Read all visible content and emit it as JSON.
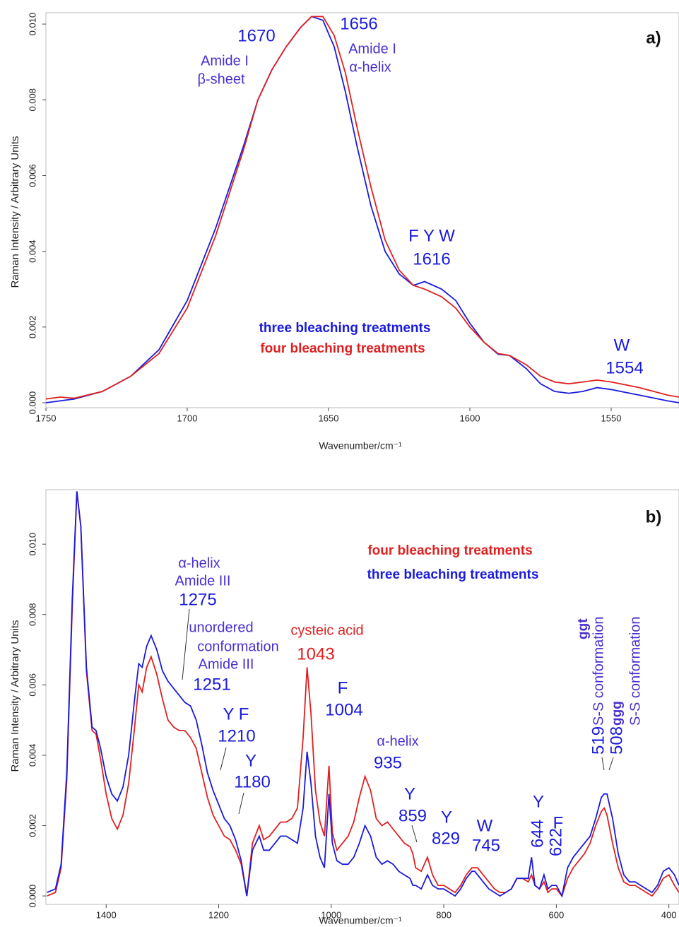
{
  "chart_data": [
    {
      "type": "line",
      "panel_label": "a)",
      "xlabel": "Wavenumber/cm⁻¹",
      "ylabel": "Raman Intensity / Arbitrary Units",
      "xlim": [
        1750,
        1526
      ],
      "xticks": [
        1750,
        1700,
        1650,
        1600,
        1550
      ],
      "ylim": [
        -0.00013,
        0.0103
      ],
      "yticks": [
        {
          "value": 0,
          "label": "0.000"
        },
        {
          "value": 0.002,
          "label": "0.002"
        },
        {
          "value": 0.004,
          "label": "0.004"
        },
        {
          "value": 0.006,
          "label": "0.006"
        },
        {
          "value": 0.008,
          "label": "0.008"
        },
        {
          "value": 0.01,
          "label": "0.010"
        }
      ],
      "x": [
        1750,
        1745,
        1740,
        1730,
        1720,
        1710,
        1700,
        1690,
        1680,
        1675,
        1670,
        1665,
        1660,
        1656,
        1652,
        1648,
        1644,
        1640,
        1635,
        1630,
        1625,
        1620,
        1616,
        1610,
        1605,
        1600,
        1595,
        1590,
        1586,
        1580,
        1575,
        1570,
        1565,
        1560,
        1555,
        1550,
        1540,
        1530,
        1526
      ],
      "series": [
        {
          "name": "three bleaching treatments",
          "color": "#1a1adc",
          "values": [
            0.0,
            5e-05,
            0.0001,
            0.0003,
            0.0007,
            0.0014,
            0.0027,
            0.0046,
            0.0068,
            0.008,
            0.0088,
            0.0094,
            0.0099,
            0.0102,
            0.0101,
            0.0094,
            0.0082,
            0.0068,
            0.0052,
            0.004,
            0.0034,
            0.0031,
            0.0032,
            0.003,
            0.0027,
            0.0021,
            0.0016,
            0.00128,
            0.00125,
            0.0009,
            0.0005,
            0.0003,
            0.00025,
            0.0003,
            0.0004,
            0.00035,
            0.0002,
            5e-05,
            0.0
          ]
        },
        {
          "name": "four bleaching treatments",
          "color": "#e02020",
          "values": [
            0.0001,
            0.00015,
            0.00012,
            0.0003,
            0.0007,
            0.0013,
            0.0025,
            0.0044,
            0.0067,
            0.008,
            0.0088,
            0.0094,
            0.0099,
            0.0102,
            0.0102,
            0.0097,
            0.0087,
            0.0073,
            0.0057,
            0.0043,
            0.0035,
            0.0031,
            0.003,
            0.0028,
            0.0025,
            0.002,
            0.0016,
            0.0013,
            0.00125,
            0.001,
            0.0007,
            0.00055,
            0.0005,
            0.00055,
            0.0006,
            0.00055,
            0.0004,
            0.0002,
            0.00015
          ]
        }
      ],
      "annotations": [
        "1670",
        "Amide I",
        "β-sheet",
        "1656",
        "Amide I",
        "α-helix",
        "F Y W",
        "1616",
        "W",
        "1554"
      ]
    },
    {
      "type": "line",
      "panel_label": "b)",
      "xlabel": "Wavenumber/cm⁻¹",
      "ylabel": "Raman Intensity / Arbitrary Units",
      "xlim": [
        1507,
        382
      ],
      "xticks": [
        1400,
        1200,
        1000,
        800,
        600,
        400
      ],
      "ylim": [
        -0.00024,
        0.01155
      ],
      "yticks": [
        {
          "value": 0,
          "label": "0.000"
        },
        {
          "value": 0.002,
          "label": "0.002"
        },
        {
          "value": 0.004,
          "label": "0.004"
        },
        {
          "value": 0.006,
          "label": "0.006"
        },
        {
          "value": 0.008,
          "label": "0.008"
        },
        {
          "value": 0.01,
          "label": "0.010"
        }
      ],
      "x": [
        1505,
        1490,
        1480,
        1470,
        1460,
        1452,
        1445,
        1435,
        1425,
        1418,
        1410,
        1400,
        1390,
        1380,
        1370,
        1360,
        1350,
        1342,
        1336,
        1328,
        1320,
        1310,
        1300,
        1290,
        1280,
        1270,
        1260,
        1250,
        1240,
        1230,
        1220,
        1210,
        1200,
        1190,
        1180,
        1170,
        1160,
        1150,
        1140,
        1128,
        1120,
        1110,
        1100,
        1090,
        1080,
        1070,
        1060,
        1050,
        1043,
        1036,
        1028,
        1020,
        1012,
        1004,
        998,
        990,
        980,
        970,
        960,
        950,
        940,
        930,
        920,
        910,
        900,
        890,
        880,
        870,
        860,
        855,
        850,
        840,
        829,
        820,
        810,
        800,
        790,
        780,
        770,
        760,
        750,
        745,
        740,
        730,
        720,
        710,
        700,
        690,
        680,
        670,
        660,
        650,
        644,
        638,
        630,
        622,
        615,
        608,
        600,
        590,
        580,
        570,
        560,
        550,
        540,
        530,
        520,
        515,
        510,
        500,
        490,
        480,
        470,
        460,
        450,
        440,
        430,
        420,
        410,
        400,
        390,
        382
      ],
      "series": [
        {
          "name": "four bleaching treatments",
          "color": "#e02020",
          "values": [
            0.0,
            0.0001,
            0.0008,
            0.0033,
            0.0083,
            0.0115,
            0.0105,
            0.0064,
            0.0047,
            0.0046,
            0.0039,
            0.0029,
            0.0022,
            0.0019,
            0.0023,
            0.0032,
            0.0047,
            0.006,
            0.0058,
            0.0065,
            0.0068,
            0.0063,
            0.0056,
            0.005,
            0.0048,
            0.0047,
            0.0047,
            0.0045,
            0.0042,
            0.0035,
            0.0028,
            0.0023,
            0.002,
            0.0017,
            0.0016,
            0.0013,
            0.0009,
            0.0,
            0.0015,
            0.002,
            0.0016,
            0.0017,
            0.0019,
            0.0021,
            0.0021,
            0.0022,
            0.0025,
            0.0045,
            0.0065,
            0.0052,
            0.003,
            0.0021,
            0.0017,
            0.0037,
            0.0018,
            0.0013,
            0.0015,
            0.0017,
            0.0021,
            0.0028,
            0.0034,
            0.003,
            0.0022,
            0.002,
            0.0021,
            0.0019,
            0.0017,
            0.0015,
            0.0014,
            0.0012,
            0.0008,
            0.0007,
            0.0011,
            0.0006,
            0.0003,
            0.0003,
            0.0002,
            0.0001,
            0.0003,
            0.0006,
            0.0008,
            0.0008,
            0.0008,
            0.0006,
            0.0004,
            0.0002,
            0.0001,
            0.0001,
            0.0002,
            0.0005,
            0.0005,
            0.0004,
            0.0006,
            0.0003,
            0.0002,
            0.0004,
            0.0001,
            0.0002,
            0.0002,
            0.0,
            0.0005,
            0.0008,
            0.001,
            0.0012,
            0.0015,
            0.002,
            0.0024,
            0.0025,
            0.0023,
            0.0015,
            0.0008,
            0.0004,
            0.0003,
            0.0003,
            0.0002,
            0.0001,
            0.0,
            0.0002,
            0.0005,
            0.0006,
            0.0003,
            0.0001
          ]
        },
        {
          "name": "three bleaching treatments",
          "color": "#1a1adc",
          "values": [
            0.0001,
            0.0002,
            0.0009,
            0.0035,
            0.0085,
            0.0115,
            0.0105,
            0.0065,
            0.0048,
            0.0047,
            0.0042,
            0.0034,
            0.0029,
            0.0027,
            0.0031,
            0.004,
            0.0055,
            0.0066,
            0.0065,
            0.0071,
            0.0074,
            0.007,
            0.0064,
            0.0061,
            0.0059,
            0.0057,
            0.0055,
            0.0054,
            0.005,
            0.0043,
            0.0035,
            0.003,
            0.0026,
            0.0022,
            0.002,
            0.0016,
            0.001,
            0.0,
            0.0013,
            0.0017,
            0.0013,
            0.0013,
            0.0015,
            0.0017,
            0.0017,
            0.0016,
            0.0015,
            0.0025,
            0.0041,
            0.0032,
            0.0017,
            0.0011,
            0.0008,
            0.0029,
            0.0015,
            0.001,
            0.0009,
            0.0009,
            0.0011,
            0.0015,
            0.002,
            0.0017,
            0.0011,
            0.0009,
            0.001,
            0.0009,
            0.0007,
            0.0006,
            0.0005,
            0.0003,
            0.0003,
            0.0002,
            0.0006,
            0.0003,
            0.0002,
            0.0002,
            0.0001,
            0.0,
            0.0002,
            0.0005,
            0.0007,
            0.0007,
            0.0006,
            0.0004,
            0.0002,
            0.0001,
            0.0,
            0.0001,
            0.0002,
            0.0005,
            0.0005,
            0.0005,
            0.0011,
            0.0003,
            0.0002,
            0.0006,
            0.0002,
            0.0003,
            0.0003,
            0.0,
            0.0008,
            0.0011,
            0.0013,
            0.0015,
            0.0017,
            0.0022,
            0.0028,
            0.0029,
            0.0029,
            0.0022,
            0.0012,
            0.0006,
            0.0004,
            0.0004,
            0.0003,
            0.0002,
            0.0001,
            0.0003,
            0.0007,
            0.0008,
            0.0006,
            0.0003
          ]
        }
      ],
      "annotations": [
        "α-helix",
        "Amide III",
        "1275",
        "unordered",
        "conformation",
        "Amide III",
        "1251",
        "Y F",
        "1210",
        "Y",
        "1180",
        "cysteic acid",
        "1043",
        "F",
        "1004",
        "α-helix",
        "935",
        "Y",
        "859",
        "Y",
        "829",
        "W",
        "745",
        "Y",
        "644",
        "F",
        "622",
        "ggt",
        "S-S conformation",
        "519",
        "508",
        "ggg",
        "S-S conformation"
      ]
    }
  ]
}
